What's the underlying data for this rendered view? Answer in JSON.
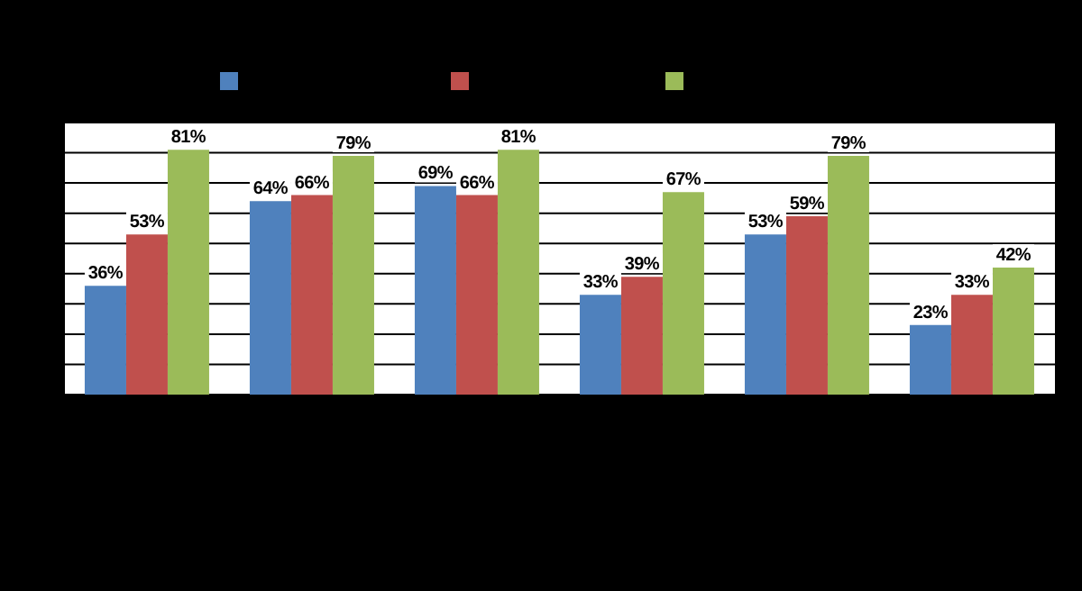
{
  "chart_data": {
    "type": "bar",
    "categories": [
      null,
      null,
      null,
      null,
      null,
      null
    ],
    "series": [
      {
        "color": "#4f81bd",
        "values": [
          36,
          64,
          69,
          33,
          53,
          23
        ],
        "value_labels": [
          "36%",
          "64%",
          "69%",
          "33%",
          "53%",
          "23%"
        ]
      },
      {
        "color": "#c0504d",
        "values": [
          53,
          66,
          66,
          39,
          59,
          33
        ],
        "value_labels": [
          "53%",
          "66%",
          "66%",
          "39%",
          "59%",
          "33%"
        ]
      },
      {
        "color": "#9bbb59",
        "values": [
          81,
          79,
          81,
          67,
          79,
          42
        ],
        "value_labels": [
          "81%",
          "79%",
          "81%",
          "67%",
          "79%",
          "42%"
        ]
      }
    ],
    "ylim": [
      0,
      90
    ],
    "yticks": [
      0,
      10,
      20,
      30,
      40,
      50,
      60,
      70,
      80,
      90
    ],
    "grid": "y",
    "tick_labels": false
  }
}
